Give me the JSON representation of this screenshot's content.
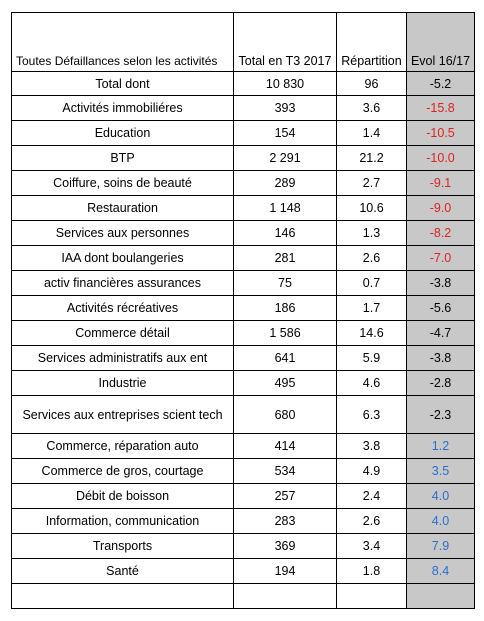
{
  "headers": {
    "activity": "Toutes Défaillances selon les activités",
    "total": "Total en T3 2017",
    "share": "Répartition",
    "evol": "Evol 16/17"
  },
  "rows": [
    {
      "activity": "Total dont",
      "total": "10 830",
      "share": "96",
      "evol": "-5.2",
      "tone": "neu"
    },
    {
      "activity": "Activités immobiliéres",
      "total": "393",
      "share": "3.6",
      "evol": "-15.8",
      "tone": "neg"
    },
    {
      "activity": "Education",
      "total": "154",
      "share": "1.4",
      "evol": "-10.5",
      "tone": "neg"
    },
    {
      "activity": "BTP",
      "total": "2 291",
      "share": "21.2",
      "evol": "-10.0",
      "tone": "neg"
    },
    {
      "activity": "Coiffure, soins de beauté",
      "total": "289",
      "share": "2.7",
      "evol": "-9.1",
      "tone": "neg"
    },
    {
      "activity": "Restauration",
      "total": "1 148",
      "share": "10.6",
      "evol": "-9.0",
      "tone": "neg"
    },
    {
      "activity": "Services aux personnes",
      "total": "146",
      "share": "1.3",
      "evol": "-8.2",
      "tone": "neg"
    },
    {
      "activity": "IAA dont boulangeries",
      "total": "281",
      "share": "2.6",
      "evol": "-7.0",
      "tone": "neg"
    },
    {
      "activity": "activ financières assurances",
      "total": "75",
      "share": "0.7",
      "evol": "-3.8",
      "tone": "neu"
    },
    {
      "activity": "Activités récréatives",
      "total": "186",
      "share": "1.7",
      "evol": "-5.6",
      "tone": "neu"
    },
    {
      "activity": "Commerce détail",
      "total": "1 586",
      "share": "14.6",
      "evol": "-4.7",
      "tone": "neu"
    },
    {
      "activity": "Services administratifs aux ent",
      "total": "641",
      "share": "5.9",
      "evol": "-3.8",
      "tone": "neu"
    },
    {
      "activity": "Industrie",
      "total": "495",
      "share": "4.6",
      "evol": "-2.8",
      "tone": "neu"
    },
    {
      "activity": "Services aux entreprises scient tech",
      "total": "680",
      "share": "6.3",
      "evol": "-2.3",
      "tone": "neu"
    },
    {
      "activity": "Commerce, réparation auto",
      "total": "414",
      "share": "3.8",
      "evol": "1.2",
      "tone": "pos"
    },
    {
      "activity": "Commerce de gros, courtage",
      "total": "534",
      "share": "4.9",
      "evol": "3.5",
      "tone": "pos"
    },
    {
      "activity": "Débit de boisson",
      "total": "257",
      "share": "2.4",
      "evol": "4.0",
      "tone": "pos"
    },
    {
      "activity": "Information, communication",
      "total": "283",
      "share": "2.6",
      "evol": "4.0",
      "tone": "pos"
    },
    {
      "activity": "Transports",
      "total": "369",
      "share": "3.4",
      "evol": "7.9",
      "tone": "pos"
    },
    {
      "activity": "Santé",
      "total": "194",
      "share": "1.8",
      "evol": "8.4",
      "tone": "pos"
    }
  ],
  "colors": {
    "negative": "#e02020",
    "positive": "#2a6fd0",
    "evol_column_bg": "#c8c8c8"
  }
}
